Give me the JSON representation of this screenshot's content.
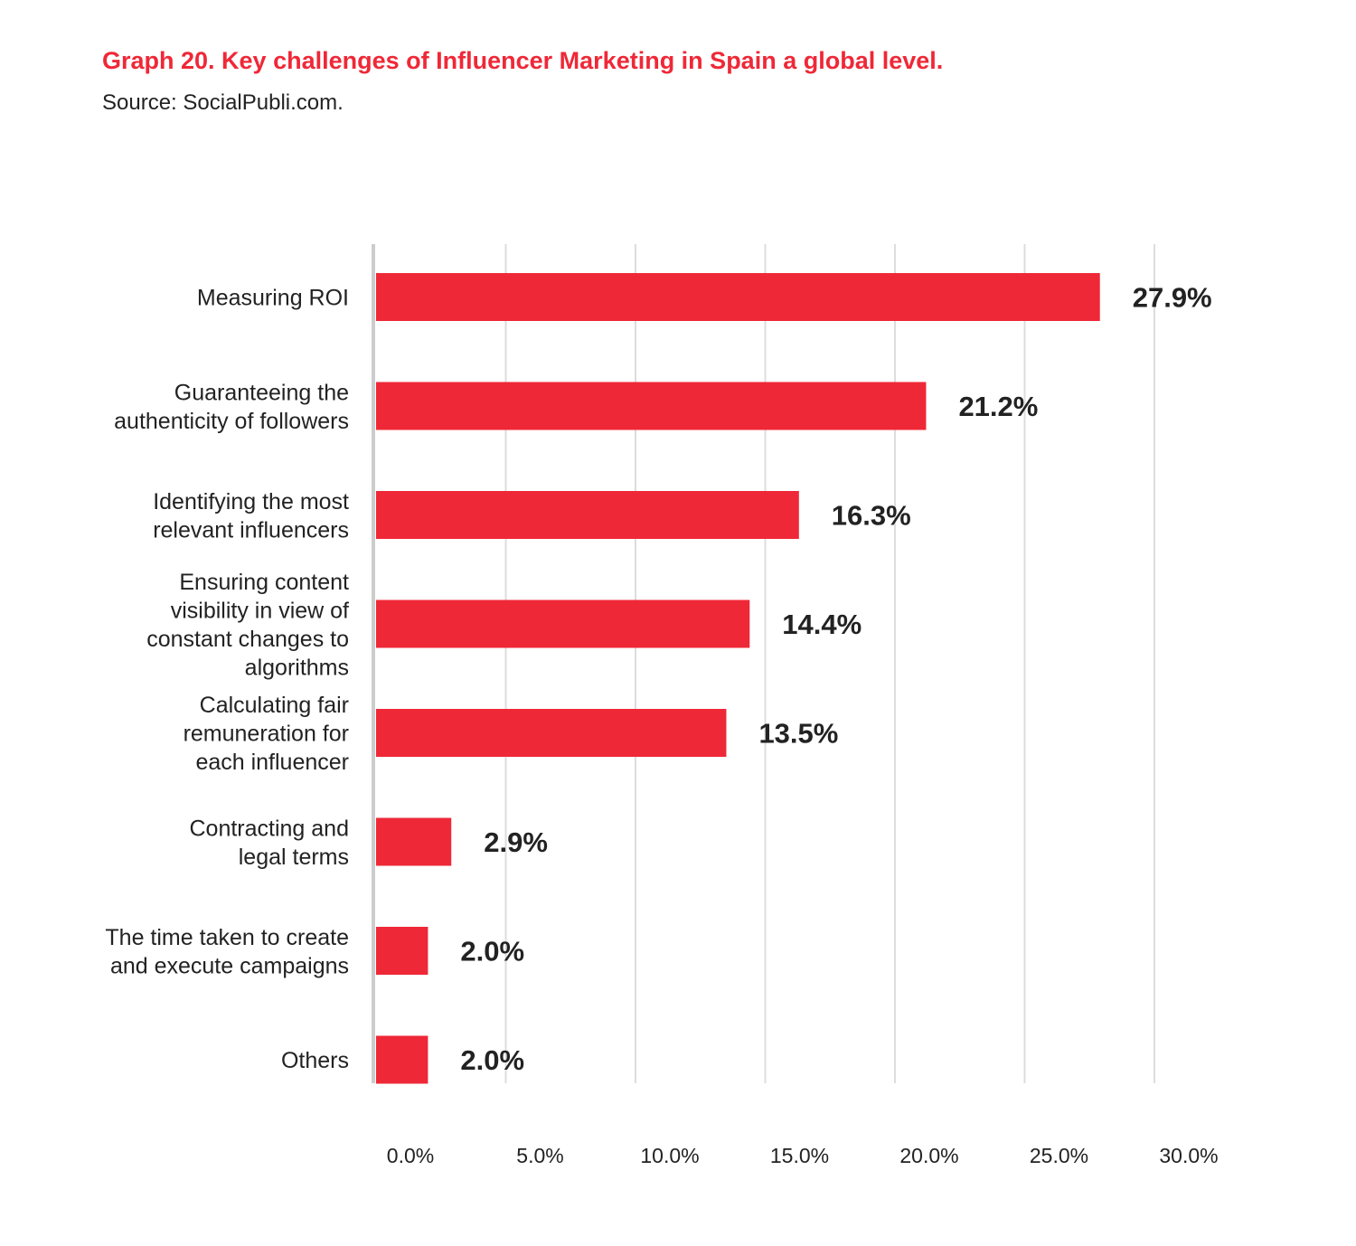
{
  "colors": {
    "accent": "#ef2837",
    "text": "#222222",
    "grid": "#dddddd",
    "axis": "#cccccc"
  },
  "chart_data": {
    "type": "bar",
    "orientation": "horizontal",
    "title": "Graph 20. Key challenges of Influencer Marketing in Spain a global level.",
    "subtitle": "Source: SocialPubli.com.",
    "xlim": [
      0,
      30
    ],
    "ticks": [
      {
        "value": 0,
        "label": "0.0%"
      },
      {
        "value": 5,
        "label": "5.0%"
      },
      {
        "value": 10,
        "label": "10.0%"
      },
      {
        "value": 15,
        "label": "15.0%"
      },
      {
        "value": 20,
        "label": "20.0%"
      },
      {
        "value": 25,
        "label": "25.0%"
      },
      {
        "value": 30,
        "label": "30.0%"
      }
    ],
    "grid": true,
    "bars": [
      {
        "category": [
          "Measuring ROI"
        ],
        "value": 27.9,
        "label": "27.9%"
      },
      {
        "category": [
          "Guaranteeing the",
          "authenticity of followers"
        ],
        "value": 21.2,
        "label": "21.2%"
      },
      {
        "category": [
          "Identifying the most",
          "relevant influencers"
        ],
        "value": 16.3,
        "label": "16.3%"
      },
      {
        "category": [
          "Ensuring content",
          "visibility in view of",
          "constant changes to",
          "algorithms"
        ],
        "value": 14.4,
        "label": "14.4%"
      },
      {
        "category": [
          "Calculating fair",
          "remuneration for",
          "each influencer"
        ],
        "value": 13.5,
        "label": "13.5%"
      },
      {
        "category": [
          "Contracting and",
          "legal terms"
        ],
        "value": 2.9,
        "label": "2.9%"
      },
      {
        "category": [
          "The time taken to create",
          "and execute campaigns"
        ],
        "value": 2.0,
        "label": "2.0%"
      },
      {
        "category": [
          "Others"
        ],
        "value": 2.0,
        "label": "2.0%"
      }
    ]
  }
}
